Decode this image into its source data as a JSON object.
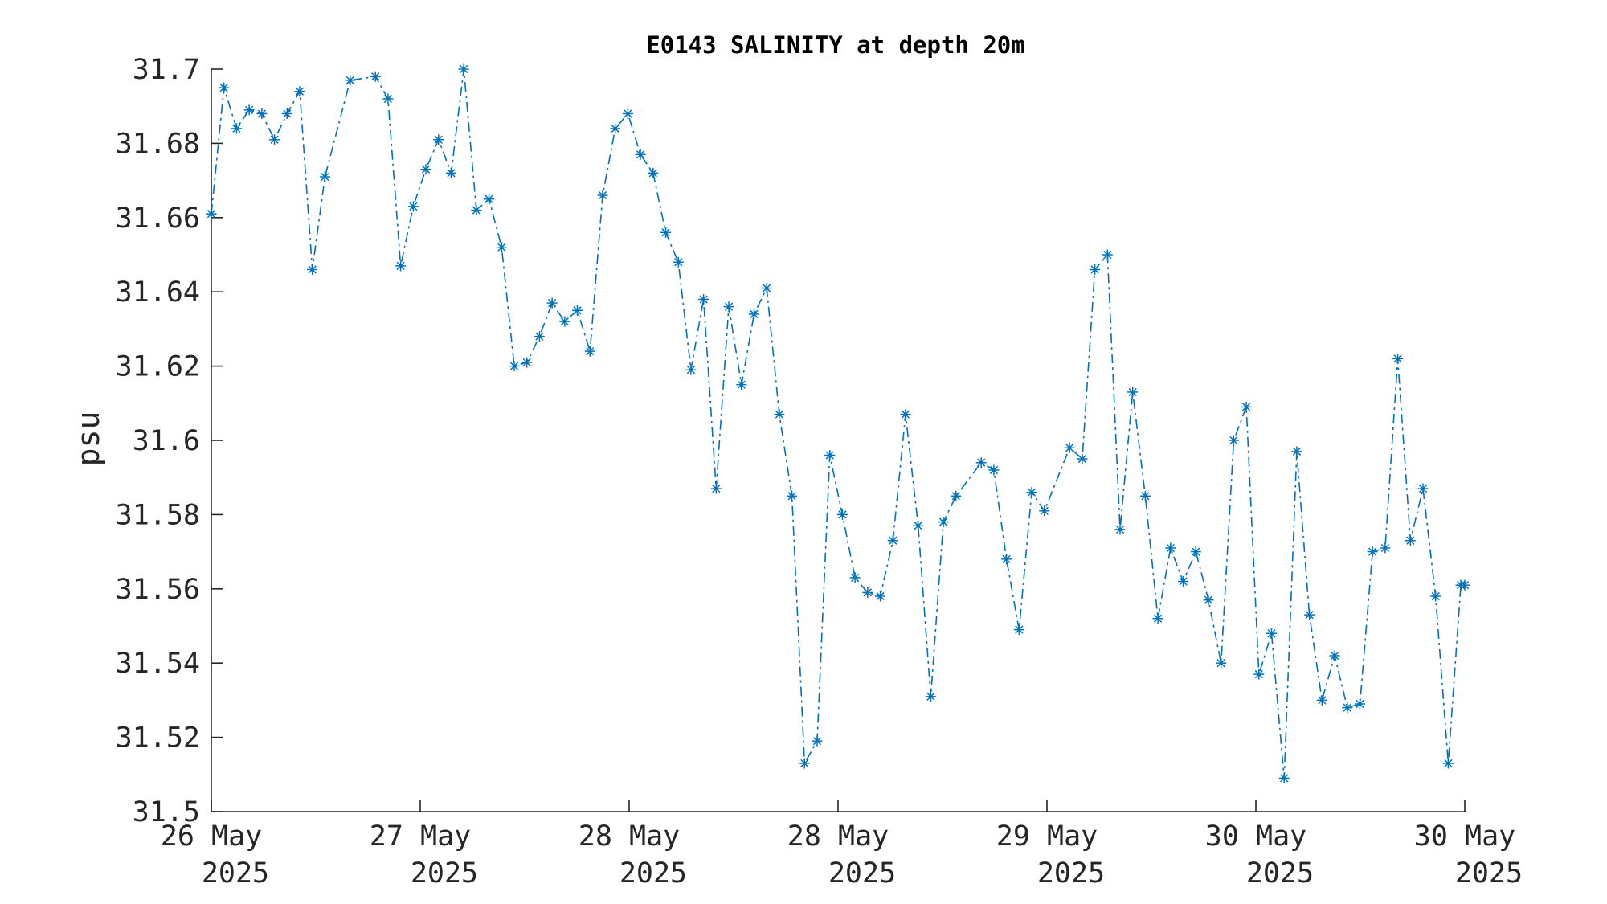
{
  "chart_data": {
    "type": "line",
    "title": "E0143 SALINITY at depth 20m",
    "xlabel": "",
    "ylabel": "psu",
    "ylim": [
      31.5,
      31.7
    ],
    "yticks": [
      31.5,
      31.52,
      31.54,
      31.56,
      31.58,
      31.6,
      31.62,
      31.64,
      31.66,
      31.68,
      31.7
    ],
    "ytick_labels": [
      "31.5",
      "31.52",
      "31.54",
      "31.56",
      "31.58",
      "31.6",
      "31.62",
      "31.64",
      "31.66",
      "31.68",
      "31.7"
    ],
    "xlim": [
      "2025-05-26T00:00",
      "2025-05-30T00:00"
    ],
    "xticks": [
      {
        "line1": "26 May",
        "line2": "2025"
      },
      {
        "line1": "27 May",
        "line2": "2025"
      },
      {
        "line1": "28 May",
        "line2": "2025"
      },
      {
        "line1": "28 May",
        "line2": "2025"
      },
      {
        "line1": "29 May",
        "line2": "2025"
      },
      {
        "line1": "30 May",
        "line2": "2025"
      },
      {
        "line1": "30 May",
        "line2": "2025"
      }
    ],
    "grid": false,
    "line_style": "dash-dot",
    "marker": "asterisk",
    "color": "#0072BD",
    "series": [
      {
        "x": [
          "2025-05-26T00:00",
          "2025-05-26T00:58",
          "2025-05-26T01:56",
          "2025-05-26T02:54",
          "2025-05-26T03:52",
          "2025-05-26T04:50",
          "2025-05-26T05:48",
          "2025-05-26T06:46",
          "2025-05-26T07:44",
          "2025-05-26T08:42",
          "2025-05-26T10:38",
          "2025-05-26T12:34",
          "2025-05-26T13:32",
          "2025-05-26T14:30",
          "2025-05-26T15:28",
          "2025-05-26T16:26",
          "2025-05-26T17:24",
          "2025-05-26T18:22",
          "2025-05-26T19:20",
          "2025-05-26T20:18",
          "2025-05-26T21:16",
          "2025-05-26T22:14",
          "2025-05-26T23:12",
          "2025-05-27T00:10",
          "2025-05-27T01:08",
          "2025-05-27T02:06",
          "2025-05-27T03:04",
          "2025-05-27T04:02",
          "2025-05-27T05:00",
          "2025-05-27T05:58",
          "2025-05-27T06:56",
          "2025-05-27T07:54",
          "2025-05-27T08:52",
          "2025-05-27T09:50",
          "2025-05-27T10:48",
          "2025-05-27T11:46",
          "2025-05-27T12:44",
          "2025-05-27T13:42",
          "2025-05-27T14:40",
          "2025-05-27T15:38",
          "2025-05-27T16:36",
          "2025-05-27T17:34",
          "2025-05-27T18:32",
          "2025-05-27T19:30",
          "2025-05-27T20:28",
          "2025-05-27T21:26",
          "2025-05-27T22:24",
          "2025-05-27T23:22",
          "2025-05-28T00:20",
          "2025-05-28T01:18",
          "2025-05-28T02:16",
          "2025-05-28T03:14",
          "2025-05-28T04:12",
          "2025-05-28T05:10",
          "2025-05-28T06:08",
          "2025-05-28T07:06",
          "2025-05-28T08:04",
          "2025-05-28T09:02",
          "2025-05-28T10:58",
          "2025-05-28T11:56",
          "2025-05-28T12:54",
          "2025-05-28T13:52",
          "2025-05-28T14:50",
          "2025-05-28T15:48",
          "2025-05-28T17:44",
          "2025-05-28T18:42",
          "2025-05-28T19:40",
          "2025-05-28T20:38",
          "2025-05-28T21:36",
          "2025-05-28T22:34",
          "2025-05-28T23:32",
          "2025-05-29T00:30",
          "2025-05-29T01:28",
          "2025-05-29T02:26",
          "2025-05-29T03:24",
          "2025-05-29T04:22",
          "2025-05-29T05:20",
          "2025-05-29T06:18",
          "2025-05-29T07:16",
          "2025-05-29T08:14",
          "2025-05-29T09:12",
          "2025-05-29T10:10",
          "2025-05-29T11:08",
          "2025-05-29T12:06",
          "2025-05-29T13:04",
          "2025-05-29T14:02",
          "2025-05-29T15:00",
          "2025-05-29T15:58",
          "2025-05-29T16:56",
          "2025-05-29T17:54",
          "2025-05-29T18:52",
          "2025-05-29T19:50",
          "2025-05-29T20:48",
          "2025-05-29T21:46",
          "2025-05-29T22:44",
          "2025-05-29T23:42",
          "2025-05-30T00:00"
        ],
        "values": [
          31.661,
          31.695,
          31.684,
          31.689,
          31.688,
          31.681,
          31.688,
          31.694,
          31.646,
          31.671,
          31.697,
          31.698,
          31.692,
          31.647,
          31.663,
          31.673,
          31.681,
          31.672,
          31.7,
          31.662,
          31.665,
          31.652,
          31.62,
          31.621,
          31.628,
          31.637,
          31.632,
          31.635,
          31.624,
          31.666,
          31.684,
          31.688,
          31.677,
          31.672,
          31.656,
          31.648,
          31.619,
          31.638,
          31.587,
          31.636,
          31.615,
          31.634,
          31.641,
          31.607,
          31.585,
          31.513,
          31.519,
          31.596,
          31.58,
          31.563,
          31.559,
          31.558,
          31.573,
          31.607,
          31.577,
          31.531,
          31.578,
          31.585,
          31.594,
          31.592,
          31.568,
          31.549,
          31.586,
          31.581,
          31.598,
          31.595,
          31.646,
          31.65,
          31.576,
          31.613,
          31.585,
          31.552,
          31.571,
          31.562,
          31.57,
          31.557,
          31.54,
          31.6,
          31.609,
          31.537,
          31.548,
          31.509,
          31.597,
          31.553,
          31.53,
          31.542,
          31.528,
          31.529,
          31.57,
          31.571,
          31.622,
          31.573,
          31.587,
          31.558,
          31.513,
          31.561,
          31.561
        ]
      }
    ]
  }
}
